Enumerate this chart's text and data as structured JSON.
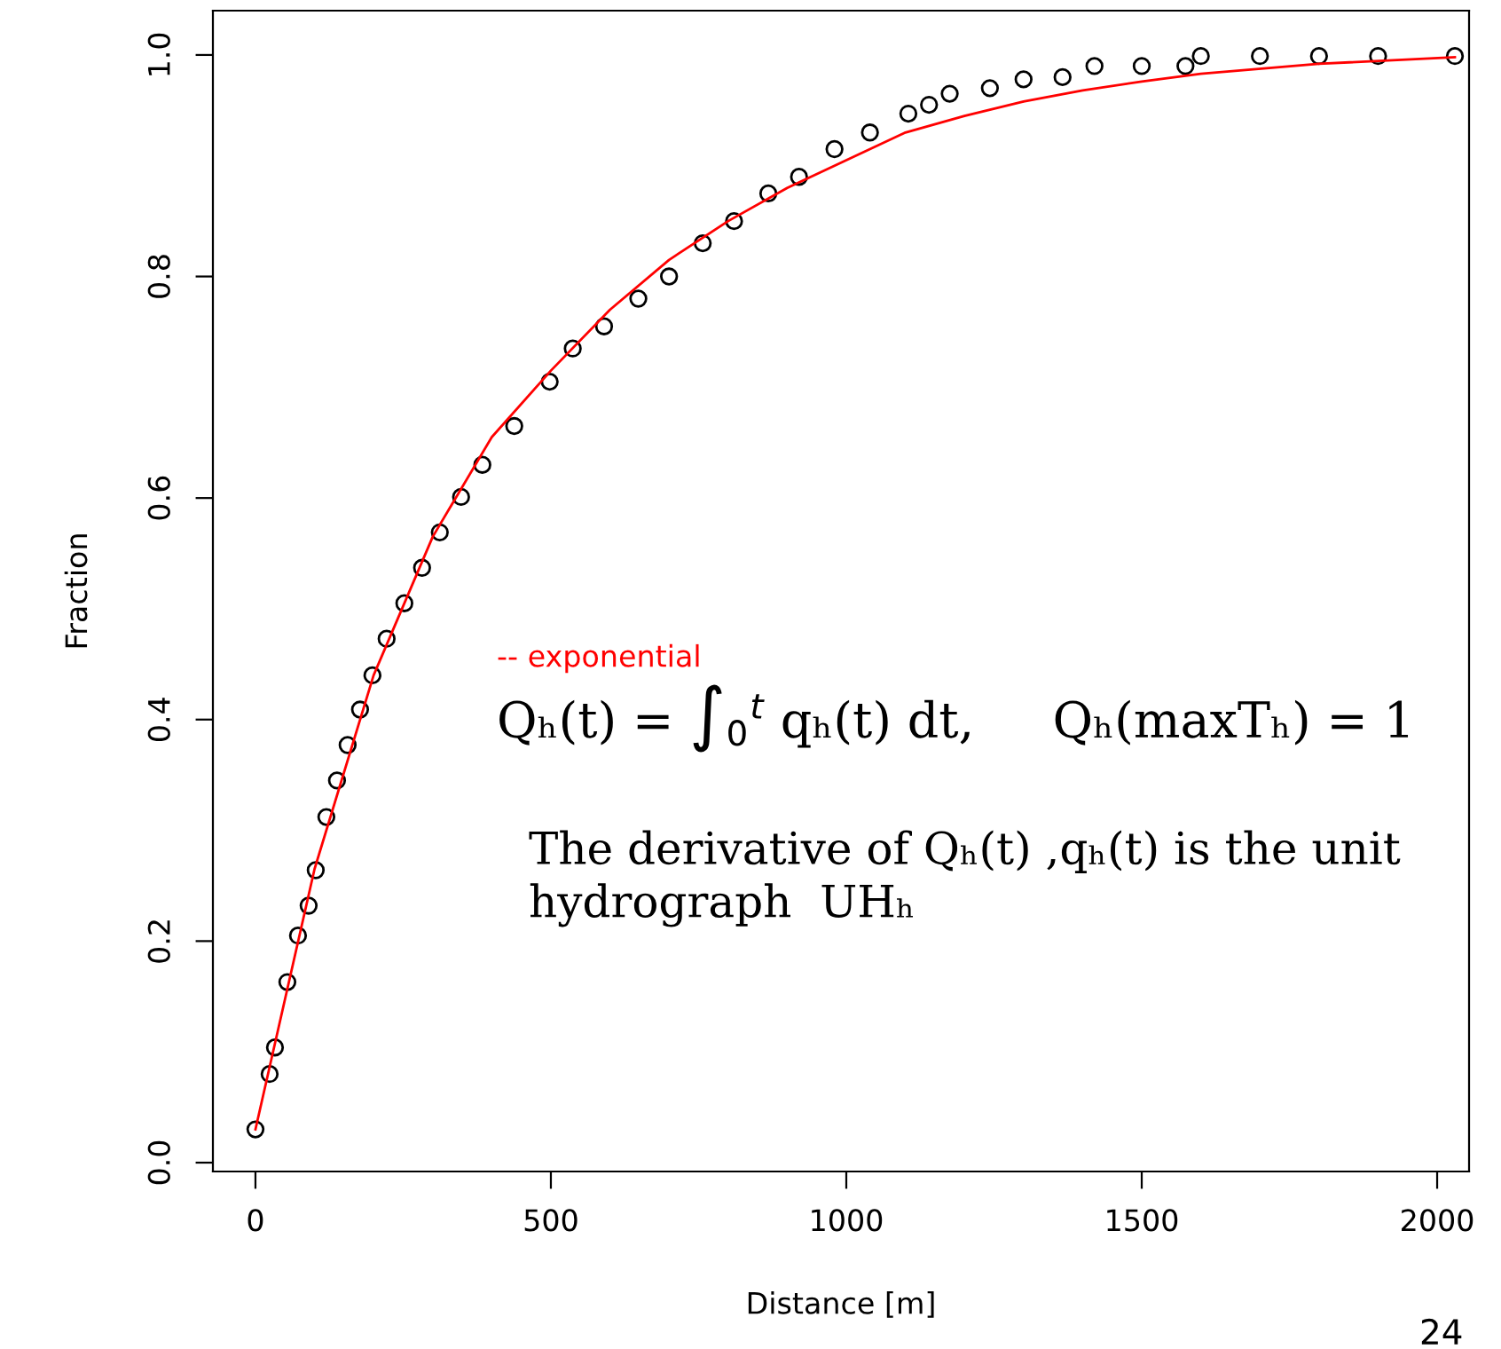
{
  "chart_data": {
    "type": "scatter",
    "xlabel": "Distance [m]",
    "ylabel": "Fraction",
    "xlim": [
      -72,
      2054
    ],
    "ylim": [
      -0.008,
      1.04
    ],
    "xticks": [
      0,
      500,
      1000,
      1500,
      2000
    ],
    "yticks": [
      {
        "value": 0,
        "label": "0.0"
      },
      0.2,
      0.4,
      0.6,
      0.8,
      {
        "value": 1,
        "label": "1.0"
      }
    ],
    "grid": false,
    "series": [
      {
        "marker": "circle",
        "color": "#000000",
        "x": [
          0,
          24,
          33,
          54,
          72,
          90,
          102,
          120,
          138,
          156,
          177,
          198,
          222,
          252,
          282,
          312,
          348,
          384,
          438,
          498,
          537,
          590,
          648,
          700,
          757,
          810,
          868,
          920,
          980,
          1040,
          1105,
          1140,
          1175,
          1243,
          1300,
          1366,
          1420,
          1500,
          1574,
          1600,
          1700,
          1800,
          1900,
          2030
        ],
        "values": [
          0.03,
          0.08,
          0.104,
          0.163,
          0.205,
          0.232,
          0.264,
          0.312,
          0.345,
          0.377,
          0.409,
          0.44,
          0.473,
          0.505,
          0.537,
          0.569,
          0.601,
          0.63,
          0.665,
          0.705,
          0.735,
          0.755,
          0.78,
          0.8,
          0.83,
          0.85,
          0.875,
          0.89,
          0.915,
          0.93,
          0.947,
          0.955,
          0.965,
          0.97,
          0.978,
          0.98,
          0.99,
          0.99,
          0.99,
          0.999,
          0.999,
          0.999,
          0.999,
          0.999
        ]
      },
      {
        "type": "line",
        "marker": "none",
        "color": "#ff0000",
        "x": [
          0,
          100,
          200,
          300,
          400,
          500,
          600,
          700,
          800,
          900,
          1000,
          1100,
          1200,
          1300,
          1400,
          1500,
          1600,
          1800,
          2030
        ],
        "values": [
          0.03,
          0.265,
          0.44,
          0.565,
          0.655,
          0.715,
          0.77,
          0.815,
          0.85,
          0.88,
          0.905,
          0.93,
          0.945,
          0.958,
          0.968,
          0.976,
          0.983,
          0.992,
          0.998
        ]
      }
    ],
    "annotations": [
      "-- exponential",
      "Qₕ(t) = ∫$_{0}$$^{t}$ qₕ(t) dt,     Qₕ(maxTₕ) = 1",
      "The derivative of Qₕ(t) ,qₕ(t) is the unit\nhydrograph  UHₕ",
      "24"
    ]
  }
}
